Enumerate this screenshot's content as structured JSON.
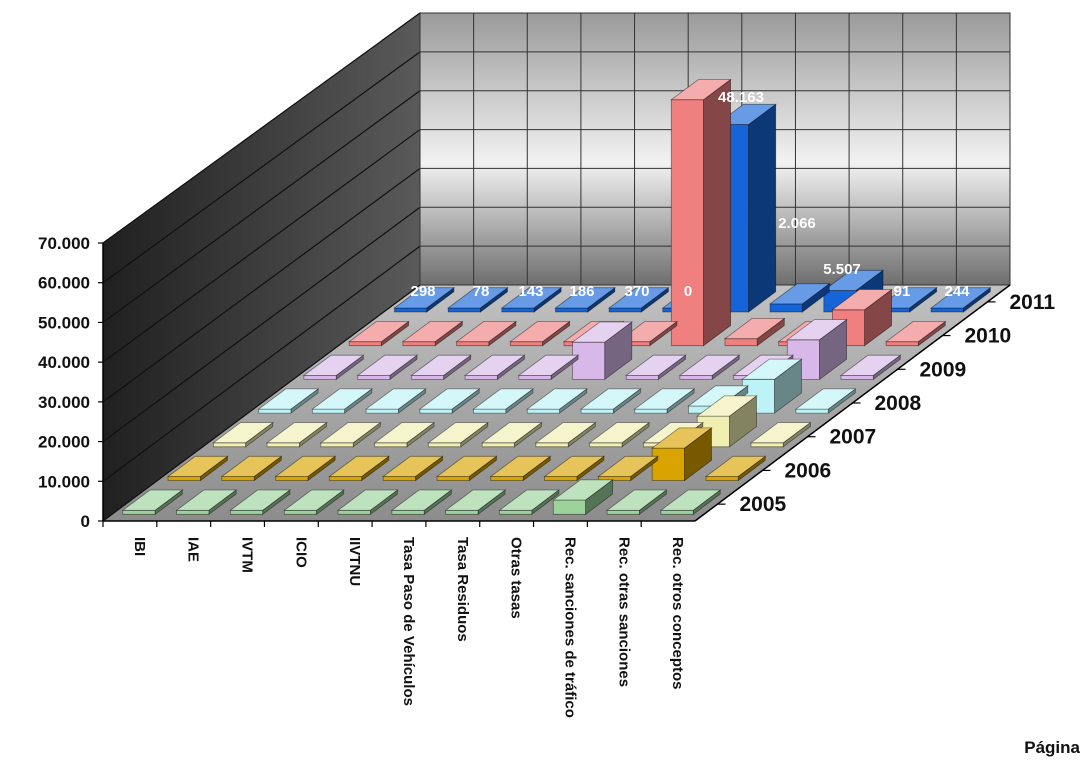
{
  "chart_data": {
    "type": "bar",
    "subtype": "3d-column",
    "title": "",
    "xlabel": "",
    "ylabel": "",
    "ylim": [
      0,
      70000
    ],
    "y_ticks": [
      "0",
      "10.000",
      "20.000",
      "30.000",
      "40.000",
      "50.000",
      "60.000",
      "70.000"
    ],
    "grid": true,
    "legend": "none",
    "categories": [
      "IBI",
      "IAE",
      "IVTM",
      "ICIO",
      "IIVTNU",
      "Tasa Paso de Vehículos",
      "Tasa Residuos",
      "Otras tasas",
      "Rec. sanciones de tráfico",
      "Rec. otras sanciones",
      "Rec. otros conceptos"
    ],
    "series": [
      {
        "name": "2005",
        "color": "#9bd39b",
        "values": [
          0,
          0,
          0,
          0,
          0,
          0,
          0,
          0,
          3600,
          0,
          0
        ]
      },
      {
        "name": "2006",
        "color": "#d9a400",
        "values": [
          0,
          0,
          0,
          0,
          0,
          0,
          0,
          0,
          0,
          8200,
          0
        ]
      },
      {
        "name": "2007",
        "color": "#f0eeb0",
        "values": [
          0,
          0,
          0,
          0,
          0,
          0,
          0,
          0,
          0,
          7800,
          0
        ]
      },
      {
        "name": "2008",
        "color": "#bdf3f6",
        "values": [
          0,
          0,
          0,
          0,
          0,
          0,
          0,
          0,
          1800,
          8600,
          0
        ]
      },
      {
        "name": "2009",
        "color": "#d7b8e8",
        "values": [
          0,
          0,
          0,
          0,
          0,
          9500,
          0,
          0,
          0,
          10100,
          0
        ]
      },
      {
        "name": "2010",
        "color": "#f08080",
        "values": [
          0,
          0,
          0,
          0,
          0,
          0,
          63000,
          1800,
          0,
          9200,
          0
        ]
      },
      {
        "name": "2011",
        "color": "#1565d8",
        "values": [
          298,
          78,
          143,
          186,
          370,
          0,
          48163,
          2066,
          5507,
          91,
          244
        ]
      }
    ],
    "data_labels": [
      "298",
      "78",
      "143",
      "186",
      "370",
      "0",
      "48.163",
      "2.066",
      "5.507",
      "91",
      "244"
    ]
  },
  "footer": {
    "text": "Página"
  }
}
